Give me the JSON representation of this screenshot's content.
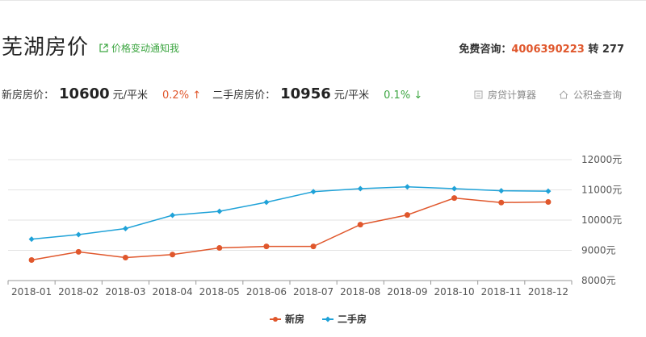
{
  "page": {
    "title": "芜湖房价",
    "notify_label": "价格变动通知我",
    "hotline_label": "免费咨询：",
    "hotline_number": "4006390223",
    "hotline_ext": "转 277"
  },
  "prices": {
    "new_label": "新房房价：",
    "new_value": "10600",
    "new_unit": "元/平米",
    "new_change": "0.2%",
    "new_arrow": "↑",
    "second_label": "二手房房价：",
    "second_value": "10956",
    "second_unit": "元/平米",
    "second_change": "0.1%",
    "second_arrow": "↓"
  },
  "tools": {
    "calculator_label": "房贷计算器",
    "fund_label": "公积金查询"
  },
  "colors": {
    "new": "#e0572c",
    "second": "#1fa2d8",
    "accent_green": "#3da642"
  },
  "icons": {
    "notify": "external-link-icon",
    "calculator": "calculator-icon",
    "fund": "house-icon"
  },
  "chart_data": {
    "type": "line",
    "categories": [
      "2018-01",
      "2018-02",
      "2018-03",
      "2018-04",
      "2018-05",
      "2018-06",
      "2018-07",
      "2018-08",
      "2018-09",
      "2018-10",
      "2018-11",
      "2018-12"
    ],
    "series": [
      {
        "name": "新房",
        "values": [
          8680,
          8950,
          8760,
          8860,
          9080,
          9130,
          9130,
          9850,
          10170,
          10730,
          10580,
          10600
        ]
      },
      {
        "name": "二手房",
        "values": [
          9370,
          9520,
          9720,
          10160,
          10290,
          10590,
          10940,
          11040,
          11100,
          11040,
          10970,
          10956
        ]
      }
    ],
    "ylim": [
      8000,
      12000
    ],
    "yticks": [
      8000,
      9000,
      10000,
      11000,
      12000
    ],
    "ytick_labels": [
      "8000元",
      "9000元",
      "10000元",
      "11000元",
      "12000元"
    ],
    "grid": true,
    "legend": "bottom-center",
    "title": "",
    "xlabel": "",
    "ylabel": ""
  }
}
